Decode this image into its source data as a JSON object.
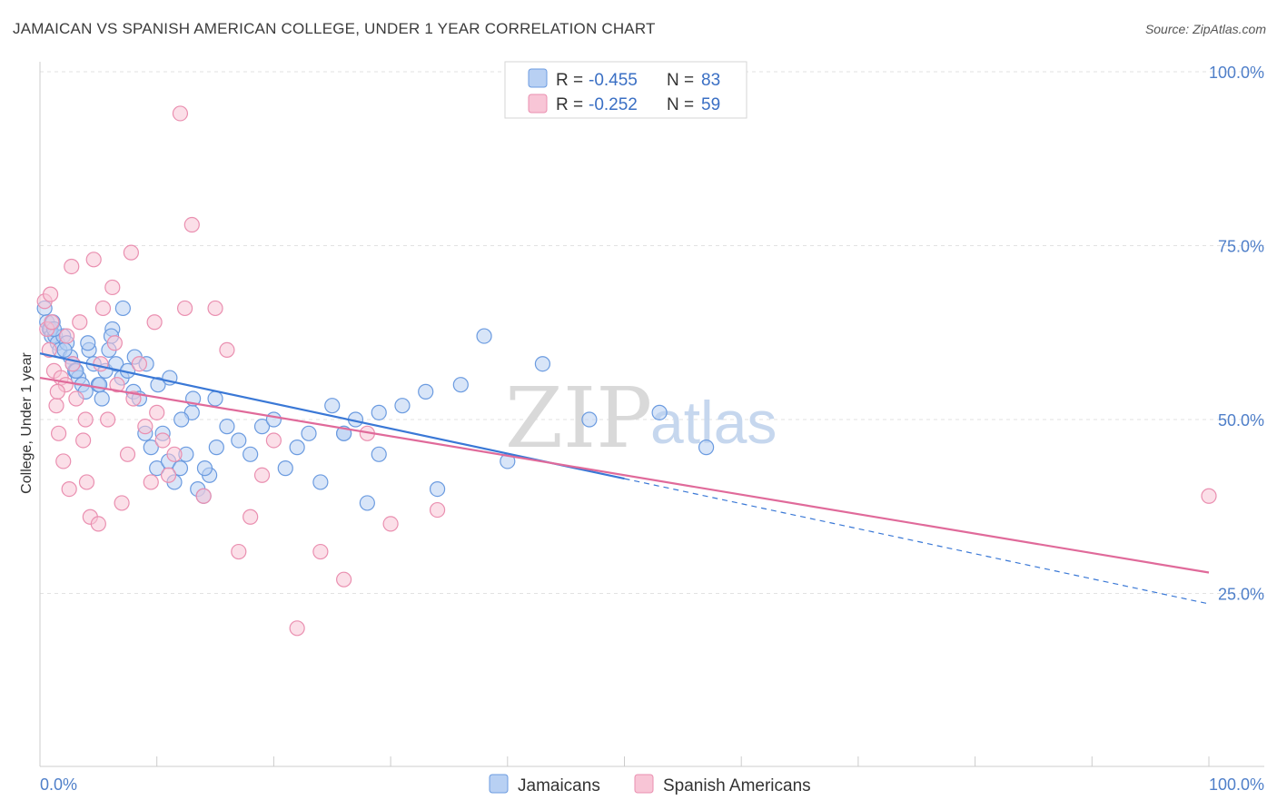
{
  "header": {
    "title": "JAMAICAN VS SPANISH AMERICAN COLLEGE, UNDER 1 YEAR CORRELATION CHART",
    "source": "Source: ZipAtlas.com"
  },
  "watermark": {
    "zip": "ZIP",
    "atlas": "atlas"
  },
  "legend": {
    "rows": [
      {
        "r_label": "R =",
        "r_value": "-0.455",
        "n_label": "N =",
        "n_value": "83",
        "color": "#6b9be0",
        "fill": "#b8d0f3"
      },
      {
        "r_label": "R =",
        "r_value": "-0.252",
        "n_label": "N =",
        "n_value": "59",
        "color": "#ea8fb0",
        "fill": "#f8c5d6"
      }
    ]
  },
  "bottom_legend": [
    {
      "label": "Jamaicans",
      "color": "#6b9be0",
      "fill": "#b8d0f3"
    },
    {
      "label": "Spanish Americans",
      "color": "#ea8fb0",
      "fill": "#f8c5d6"
    }
  ],
  "chart_data": {
    "type": "scatter",
    "title": "JAMAICAN VS SPANISH AMERICAN COLLEGE, UNDER 1 YEAR CORRELATION CHART",
    "xlabel": "",
    "ylabel": "College, Under 1 year",
    "xlim": [
      0,
      100
    ],
    "ylim": [
      0,
      100
    ],
    "x_tick_labels": [
      "0.0%",
      "100.0%"
    ],
    "y_ticks": [
      25,
      50,
      75,
      100
    ],
    "y_tick_labels": [
      "25.0%",
      "50.0%",
      "75.0%",
      "100.0%"
    ],
    "grid": true,
    "series": [
      {
        "name": "Jamaicans",
        "color": "#3a78d6",
        "marker_fill": "#b8d0f3",
        "marker_edge": "#6b9be0",
        "trend": {
          "x_start": 0,
          "y_start": 59.5,
          "x_solid_end": 50,
          "x_end": 100,
          "y_end": 23.5
        },
        "x": [
          0.4,
          0.6,
          0.8,
          0.9,
          1.0,
          1.1,
          1.3,
          1.5,
          1.7,
          2.0,
          2.3,
          2.6,
          2.8,
          3.0,
          3.3,
          3.6,
          3.9,
          4.2,
          4.6,
          5.0,
          5.3,
          5.6,
          5.9,
          6.2,
          6.5,
          7.0,
          7.5,
          8.0,
          8.5,
          9.0,
          9.5,
          10.0,
          10.5,
          11.0,
          11.5,
          12.0,
          12.5,
          13.0,
          13.5,
          14.0,
          14.5,
          15.0,
          16.0,
          17.0,
          18.0,
          19.0,
          20.0,
          21.0,
          22.0,
          23.0,
          24.0,
          25.0,
          26.0,
          27.0,
          28.0,
          29.0,
          31.0,
          33.0,
          34.0,
          36.0,
          38.0,
          40.0,
          43.0,
          47.0,
          53.0,
          57.0,
          1.2,
          2.1,
          3.1,
          4.1,
          5.1,
          6.1,
          7.1,
          8.1,
          9.1,
          10.1,
          11.1,
          12.1,
          13.1,
          14.1,
          15.1,
          26.0,
          29.0
        ],
        "y": [
          66,
          64,
          63,
          63,
          62,
          64,
          62,
          61,
          60,
          62,
          61,
          59,
          58,
          57,
          56,
          55,
          54,
          60,
          58,
          55,
          53,
          57,
          60,
          63,
          58,
          56,
          57,
          54,
          53,
          48,
          46,
          43,
          48,
          44,
          41,
          43,
          45,
          51,
          40,
          39,
          42,
          53,
          49,
          47,
          45,
          49,
          50,
          43,
          46,
          48,
          41,
          52,
          48,
          50,
          38,
          45,
          52,
          54,
          40,
          55,
          62,
          44,
          58,
          50,
          51,
          46,
          63,
          60,
          57,
          61,
          55,
          62,
          66,
          59,
          58,
          55,
          56,
          50,
          53,
          43,
          46,
          48,
          51
        ],
        "r": -0.455,
        "n": 83
      },
      {
        "name": "Spanish Americans",
        "color": "#e06a9a",
        "marker_fill": "#f8c5d6",
        "marker_edge": "#ea8fb0",
        "trend": {
          "x_start": 0,
          "y_start": 56,
          "x_end": 100,
          "y_end": 28
        },
        "x": [
          0.4,
          0.6,
          0.8,
          1.0,
          1.2,
          1.4,
          1.6,
          1.8,
          2.0,
          2.2,
          2.5,
          2.8,
          3.1,
          3.4,
          3.7,
          4.0,
          4.3,
          4.6,
          5.0,
          5.4,
          5.8,
          6.2,
          6.6,
          7.0,
          7.5,
          8.0,
          8.5,
          9.0,
          9.5,
          10.0,
          10.5,
          11.0,
          11.5,
          12.0,
          13.0,
          14.0,
          15.0,
          16.0,
          17.0,
          18.0,
          19.0,
          20.0,
          22.0,
          24.0,
          26.0,
          28.0,
          30.0,
          34.0,
          100.0,
          1.5,
          2.7,
          3.9,
          5.2,
          6.4,
          7.8,
          9.8,
          12.4,
          0.9,
          2.3
        ],
        "y": [
          67,
          63,
          60,
          64,
          57,
          52,
          48,
          56,
          44,
          55,
          40,
          58,
          53,
          64,
          47,
          41,
          36,
          73,
          35,
          66,
          50,
          69,
          55,
          38,
          45,
          53,
          58,
          49,
          41,
          51,
          47,
          42,
          45,
          94,
          78,
          39,
          66,
          60,
          31,
          36,
          42,
          47,
          20,
          31,
          27,
          48,
          35,
          37,
          39,
          54,
          72,
          50,
          58,
          61,
          74,
          64,
          66,
          68,
          62
        ]
      }
    ]
  }
}
